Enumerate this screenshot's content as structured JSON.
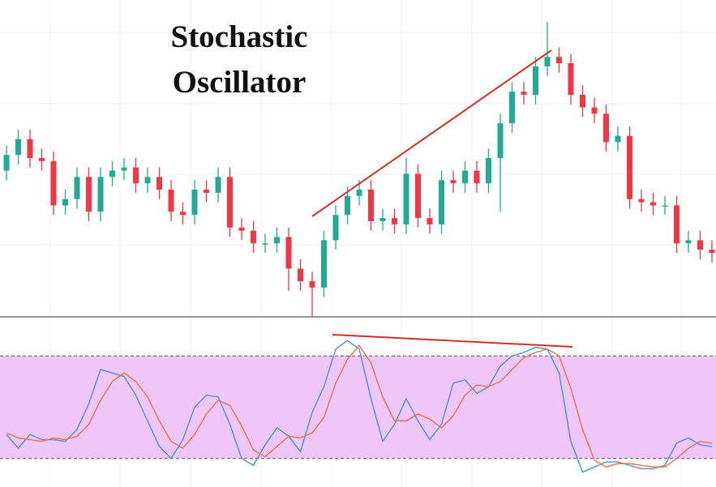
{
  "chart_data": [
    {
      "type": "candlestick",
      "title": "Stochastic Oscillator",
      "up_color": "#22ab94",
      "down_color": "#f23645",
      "ylim": [
        0,
        100
      ],
      "open": [
        46,
        51,
        56,
        50,
        49,
        35,
        37,
        44,
        33,
        44,
        46,
        47,
        42,
        44,
        40,
        33,
        32,
        40,
        39,
        44,
        28,
        27,
        23,
        23,
        25,
        15,
        11,
        9,
        24,
        32,
        38,
        40,
        30,
        31,
        29,
        45,
        31,
        29,
        43,
        42,
        46,
        42,
        50,
        61,
        71,
        70,
        79,
        82,
        80,
        70,
        66,
        64,
        55,
        57,
        37,
        36,
        35,
        35,
        23,
        24,
        21
      ],
      "high": [
        54,
        59,
        59,
        53,
        52,
        40,
        47,
        47,
        47,
        49,
        50,
        50,
        47,
        47,
        43,
        36,
        43,
        43,
        47,
        47,
        31,
        30,
        26,
        28,
        28,
        18,
        14,
        27,
        35,
        41,
        43,
        43,
        34,
        34,
        50,
        48,
        34,
        46,
        46,
        49,
        49,
        53,
        64,
        74,
        74,
        82,
        93,
        85,
        83,
        73,
        69,
        67,
        60,
        60,
        40,
        39,
        38,
        38,
        27,
        27,
        24
      ],
      "low": [
        43,
        48,
        47,
        46,
        32,
        32,
        34,
        30,
        30,
        41,
        43,
        39,
        39,
        37,
        30,
        29,
        29,
        36,
        36,
        25,
        24,
        20,
        20,
        20,
        8,
        8,
        0,
        6,
        21,
        29,
        35,
        27,
        27,
        26,
        26,
        28,
        26,
        26,
        39,
        39,
        39,
        39,
        33,
        58,
        67,
        67,
        76,
        77,
        67,
        63,
        61,
        52,
        52,
        34,
        33,
        32,
        32,
        20,
        20,
        18,
        17
      ],
      "close": [
        51,
        56,
        50,
        49,
        35,
        37,
        44,
        33,
        44,
        46,
        47,
        42,
        44,
        40,
        33,
        32,
        40,
        39,
        44,
        28,
        27,
        23,
        23,
        25,
        15,
        11,
        9,
        24,
        32,
        38,
        40,
        30,
        31,
        29,
        45,
        31,
        29,
        43,
        42,
        46,
        42,
        50,
        61,
        71,
        70,
        79,
        82,
        80,
        70,
        66,
        64,
        55,
        57,
        37,
        36,
        35,
        35,
        23,
        24,
        21,
        20
      ]
    },
    {
      "type": "line",
      "ylim": [
        0,
        100
      ],
      "band": [
        20,
        80
      ],
      "band_color": "#eec6f8",
      "series": [
        {
          "color": "#4a90d9",
          "values": [
            34,
            26,
            34,
            31,
            31,
            30,
            37,
            52,
            72,
            70,
            68,
            57,
            42,
            27,
            20,
            31,
            50,
            57,
            56,
            40,
            20,
            16,
            28,
            38,
            33,
            24,
            47,
            62,
            84,
            89,
            84,
            55,
            30,
            40,
            55,
            42,
            31,
            40,
            64,
            66,
            58,
            62,
            74,
            80,
            82,
            85,
            84,
            70,
            30,
            12,
            15,
            18,
            18,
            16,
            14,
            14,
            16,
            29,
            32,
            28,
            27
          ]
        },
        {
          "color": "#f0704a",
          "values": [
            35,
            32,
            31,
            30,
            32,
            31,
            33,
            40,
            54,
            65,
            70,
            65,
            56,
            42,
            30,
            26,
            34,
            46,
            54,
            51,
            39,
            25,
            21,
            27,
            33,
            32,
            35,
            44,
            64,
            78,
            86,
            76,
            56,
            42,
            42,
            46,
            43,
            38,
            45,
            57,
            63,
            62,
            65,
            72,
            79,
            82,
            84,
            80,
            61,
            37,
            19,
            15,
            17,
            17,
            16,
            15,
            15,
            20,
            26,
            30,
            29
          ]
        }
      ]
    }
  ]
}
